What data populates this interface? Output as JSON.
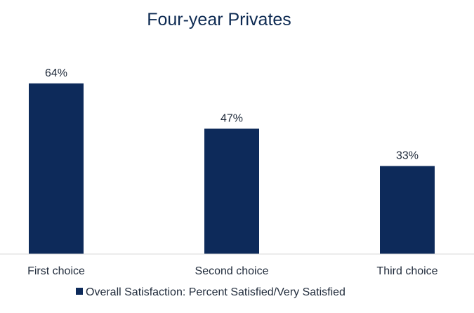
{
  "chart_data": {
    "type": "bar",
    "title": "Four-year Privates",
    "categories": [
      "First choice",
      "Second choice",
      "Third choice"
    ],
    "series": [
      {
        "name": "Overall Satisfaction: Percent Satisfied/Very Satisfied",
        "values": [
          64,
          47,
          33
        ],
        "value_labels": [
          "64%",
          "47%",
          "33%"
        ],
        "color": "#0d2a5a"
      }
    ],
    "ylim": [
      0,
      100
    ],
    "grid": false,
    "legend": "bottom",
    "baseline_color": "#d9d9d9"
  }
}
